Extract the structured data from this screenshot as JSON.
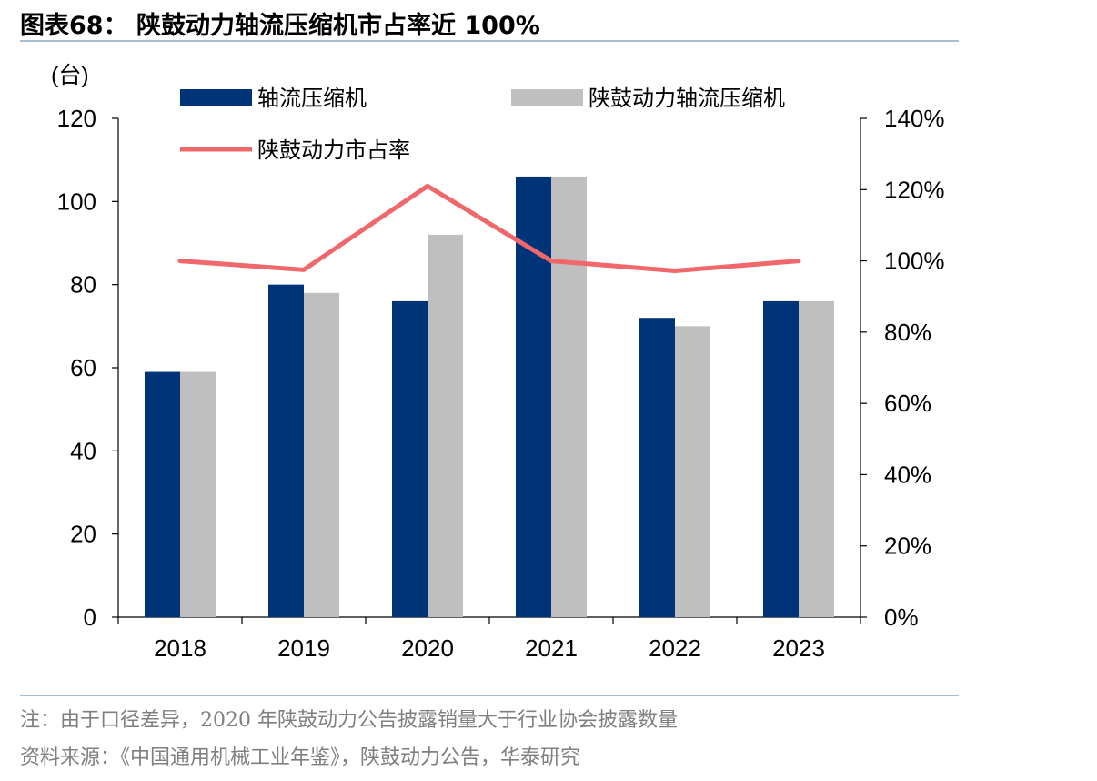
{
  "figure": {
    "title": "图表68：  陕鼓动力轴流压缩机市占率近 100%",
    "note": "注：由于口径差异，2020 年陕鼓动力公告披露销量大于行业协会披露数量",
    "source": "资料来源：《中国通用机械工业年鉴》，陕鼓动力公告，华泰研究"
  },
  "chart_data": {
    "type": "bar",
    "categories": [
      "2018",
      "2019",
      "2020",
      "2021",
      "2022",
      "2023"
    ],
    "y_unit_label": "(台)",
    "ylim": [
      0,
      120
    ],
    "yticks": [
      0,
      20,
      40,
      60,
      80,
      100,
      120
    ],
    "y2lim": [
      0,
      1.4
    ],
    "y2ticks": [
      "0%",
      "20%",
      "40%",
      "60%",
      "80%",
      "100%",
      "120%",
      "140%"
    ],
    "series": [
      {
        "name": "轴流压缩机",
        "type": "bar",
        "axis": "left",
        "color": "#003478",
        "values": [
          59,
          80,
          76,
          106,
          72,
          76
        ]
      },
      {
        "name": "陕鼓动力轴流压缩机",
        "type": "bar",
        "axis": "left",
        "color": "#bfbfbf",
        "values": [
          59,
          78,
          92,
          106,
          70,
          76
        ]
      },
      {
        "name": "陕鼓动力市占率",
        "type": "line",
        "axis": "right",
        "color": "#f0686c",
        "values": [
          1.0,
          0.975,
          1.21,
          1.0,
          0.972,
          1.0
        ]
      }
    ],
    "grid": false,
    "legend": "top"
  }
}
